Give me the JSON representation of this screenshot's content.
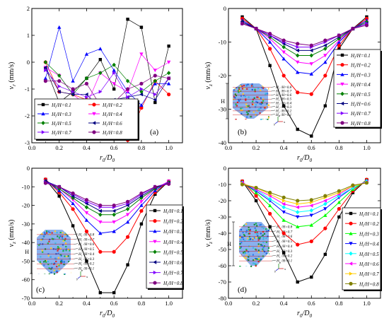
{
  "figure": {
    "panels": [
      {
        "id": "a",
        "label": "(a)"
      },
      {
        "id": "b",
        "label": "(b)"
      },
      {
        "id": "c",
        "label": "(c)"
      },
      {
        "id": "d",
        "label": "(d)"
      }
    ],
    "inset_height_label": "H"
  },
  "chart_data": [
    {
      "panel": "(a)",
      "type": "line",
      "ylabel": "v_r (mm/s)",
      "xlabel": "r_0/D_0",
      "xlim": [
        0.0,
        1.1
      ],
      "ylim": [
        -3,
        2
      ],
      "x_ticks": [
        0.0,
        0.2,
        0.4,
        0.6,
        0.8,
        1.0
      ],
      "y_ticks": [
        -3,
        -2,
        -1,
        0,
        1,
        2
      ],
      "legend_placement": "bottom-left",
      "x": [
        0.1,
        0.2,
        0.3,
        0.4,
        0.5,
        0.6,
        0.7,
        0.8,
        0.9,
        1.0
      ],
      "series": [
        {
          "name": "Hi/H=0.1",
          "color": "#000000",
          "marker": "square",
          "values": [
            -0.2,
            -1.5,
            -1.1,
            -0.6,
            0.1,
            -1.0,
            1.6,
            1.3,
            -1.5,
            0.6
          ]
        },
        {
          "name": "Hi/H=0.2",
          "color": "#ff0000",
          "marker": "circle",
          "values": [
            0.0,
            -1.1,
            -1.2,
            -1.4,
            -1.6,
            -1.6,
            -2.9,
            -1.7,
            -0.7,
            -1.2
          ]
        },
        {
          "name": "Hi/H=0.3",
          "color": "#0000ff",
          "marker": "triangle-up",
          "values": [
            -0.6,
            1.3,
            -0.7,
            0.3,
            0.5,
            -0.3,
            -1.1,
            -1.6,
            -0.8,
            -0.8
          ]
        },
        {
          "name": "Hi/H=0.4",
          "color": "#ff00ff",
          "marker": "triangle-down",
          "values": [
            -0.2,
            -0.5,
            -1.2,
            -1.6,
            -0.4,
            -0.8,
            -1.1,
            0.3,
            -0.3,
            0.0
          ]
        },
        {
          "name": "Hi/H=0.5",
          "color": "#008000",
          "marker": "diamond",
          "values": [
            0.0,
            -0.5,
            -1.2,
            -0.6,
            -0.4,
            -0.1,
            -0.7,
            -1.1,
            -0.7,
            -0.4
          ]
        },
        {
          "name": "Hi/H=0.6",
          "color": "#000080",
          "marker": "triangle-left",
          "values": [
            -0.2,
            -1.1,
            -1.2,
            -1.2,
            -1.7,
            -1.4,
            -1.3,
            -1.2,
            -1.4,
            -0.6
          ]
        },
        {
          "name": "Hi/H=0.7",
          "color": "#8000ff",
          "marker": "triangle-right",
          "values": [
            -0.3,
            -0.9,
            -1.1,
            -1.3,
            -1.1,
            -0.4,
            -1.3,
            -1.0,
            -1.2,
            -0.6
          ]
        },
        {
          "name": "Hi/H=0.8",
          "color": "#800080",
          "marker": "circle",
          "values": [
            -0.7,
            -0.7,
            -1.0,
            -0.8,
            -1.6,
            -1.5,
            -1.0,
            -0.8,
            -0.5,
            -0.6
          ]
        }
      ]
    },
    {
      "panel": "(b)",
      "type": "line",
      "ylabel": "v_z (mm/s)",
      "xlabel": "r_0/D_0",
      "xlim": [
        0.0,
        1.1
      ],
      "ylim": [
        -40,
        0
      ],
      "x_ticks": [
        0.0,
        0.2,
        0.4,
        0.6,
        0.8,
        1.0
      ],
      "y_ticks": [
        -40,
        -30,
        -20,
        -10,
        0
      ],
      "legend_placement": "bottom-right",
      "x": [
        0.1,
        0.2,
        0.3,
        0.4,
        0.5,
        0.6,
        0.7,
        0.8,
        0.9,
        1.0
      ],
      "series": [
        {
          "name": "Hi/H=0.1",
          "color": "#000000",
          "marker": "square",
          "values": [
            -2.5,
            -6,
            -17,
            -29,
            -36,
            -38,
            -29,
            -12,
            -6,
            -2.5
          ]
        },
        {
          "name": "Hi/H=0.2",
          "color": "#ff0000",
          "marker": "circle",
          "values": [
            -3,
            -6,
            -12,
            -20,
            -25,
            -25.5,
            -20,
            -11,
            -6,
            -3
          ]
        },
        {
          "name": "Hi/H=0.3",
          "color": "#0000ff",
          "marker": "triangle-up",
          "values": [
            -3.5,
            -6,
            -10,
            -15,
            -19,
            -19.5,
            -16,
            -10,
            -6,
            -3.5
          ]
        },
        {
          "name": "Hi/H=0.4",
          "color": "#ff00ff",
          "marker": "triangle-down",
          "values": [
            -4,
            -6,
            -9,
            -13,
            -16,
            -16.5,
            -14,
            -9.5,
            -6,
            -4
          ]
        },
        {
          "name": "Hi/H=0.5",
          "color": "#008000",
          "marker": "diamond",
          "values": [
            -4,
            -6,
            -8.5,
            -11.5,
            -14,
            -14,
            -12,
            -9,
            -6,
            -4
          ]
        },
        {
          "name": "Hi/H=0.6",
          "color": "#000080",
          "marker": "triangle-left",
          "values": [
            -4,
            -6,
            -8,
            -10.5,
            -12.5,
            -12.5,
            -11,
            -8.5,
            -6,
            -4.5
          ]
        },
        {
          "name": "Hi/H=0.7",
          "color": "#8000ff",
          "marker": "triangle-right",
          "values": [
            -4.5,
            -6,
            -8,
            -10,
            -11.5,
            -11.5,
            -10,
            -8,
            -6,
            -4.5
          ]
        },
        {
          "name": "Hi/H=0.8",
          "color": "#800080",
          "marker": "circle",
          "values": [
            -4.5,
            -6,
            -7.5,
            -9.5,
            -10.5,
            -11,
            -9.5,
            -8,
            -6,
            -5
          ]
        }
      ]
    },
    {
      "panel": "(c)",
      "type": "line",
      "ylabel": "v_z (mm/s)",
      "xlabel": "r_0/D_0",
      "xlim": [
        0.0,
        1.1
      ],
      "ylim": [
        -70,
        0
      ],
      "x_ticks": [
        0.0,
        0.2,
        0.4,
        0.6,
        0.8,
        1.0
      ],
      "y_ticks": [
        -70,
        -60,
        -50,
        -40,
        -30,
        -20,
        -10,
        0
      ],
      "legend_placement": "bottom-right",
      "x": [
        0.1,
        0.2,
        0.3,
        0.4,
        0.5,
        0.6,
        0.7,
        0.8,
        0.9,
        1.0
      ],
      "series": [
        {
          "name": "Hi/H=0.1",
          "color": "#000000",
          "marker": "square",
          "values": [
            -6,
            -15,
            -31,
            -50,
            -67,
            -67,
            -52,
            -30,
            -14,
            -7
          ]
        },
        {
          "name": "Hi/H=0.2",
          "color": "#ff0000",
          "marker": "circle",
          "values": [
            -6,
            -13,
            -22,
            -34,
            -45,
            -45,
            -37,
            -23,
            -13,
            -7
          ]
        },
        {
          "name": "Hi/H=0.3",
          "color": "#0000ff",
          "marker": "triangle-up",
          "values": [
            -6.5,
            -12,
            -19,
            -28,
            -35,
            -34,
            -29,
            -20,
            -12,
            -7
          ]
        },
        {
          "name": "Hi/H=0.4",
          "color": "#ff00ff",
          "marker": "triangle-down",
          "values": [
            -7,
            -11,
            -17,
            -24,
            -29,
            -29,
            -25,
            -18,
            -11,
            -7
          ]
        },
        {
          "name": "Hi/H=0.5",
          "color": "#008000",
          "marker": "diamond",
          "values": [
            -7,
            -11,
            -16,
            -21,
            -25,
            -25,
            -22,
            -16,
            -11,
            -7.5
          ]
        },
        {
          "name": "Hi/H=0.6",
          "color": "#000080",
          "marker": "triangle-left",
          "values": [
            -7,
            -10,
            -15,
            -19,
            -23,
            -23,
            -20,
            -15,
            -10.5,
            -8
          ]
        },
        {
          "name": "Hi/H=0.7",
          "color": "#8000ff",
          "marker": "triangle-right",
          "values": [
            -7.5,
            -10,
            -14,
            -18,
            -21,
            -21,
            -19,
            -14,
            -10,
            -8
          ]
        },
        {
          "name": "Hi/H=0.8",
          "color": "#800080",
          "marker": "circle",
          "values": [
            -8,
            -10,
            -13.5,
            -17,
            -20,
            -20,
            -18,
            -13.5,
            -10,
            -8.5
          ]
        }
      ]
    },
    {
      "panel": "(d)",
      "type": "line",
      "ylabel": "v_z (mm/s)",
      "xlabel": "r_0/D_0",
      "xlim": [
        0.0,
        1.1
      ],
      "ylim": [
        -80,
        0
      ],
      "x_ticks": [
        0.0,
        0.2,
        0.4,
        0.6,
        0.8,
        1.0
      ],
      "y_ticks": [
        -80,
        -70,
        -60,
        -50,
        -40,
        -30,
        -20,
        -10,
        0
      ],
      "legend_placement": "bottom-right",
      "x": [
        0.1,
        0.2,
        0.3,
        0.4,
        0.5,
        0.6,
        0.7,
        0.8,
        0.9,
        1.0
      ],
      "series": [
        {
          "name": "Hi/H=0.1",
          "color": "#000000",
          "marker": "square",
          "values": [
            -8,
            -20,
            -36,
            -52,
            -70,
            -67,
            -53,
            -30,
            -15,
            -7
          ]
        },
        {
          "name": "Hi/H=0.2",
          "color": "#ff0000",
          "marker": "circle",
          "values": [
            -8,
            -17,
            -28,
            -40,
            -47,
            -45,
            -37,
            -25,
            -14,
            -7
          ]
        },
        {
          "name": "Hi/H=0.3",
          "color": "#00ff00",
          "marker": "triangle-up",
          "values": [
            -8.5,
            -15,
            -23,
            -32,
            -36,
            -35,
            -29,
            -21,
            -13,
            -7.5
          ]
        },
        {
          "name": "Hi/H=0.4",
          "color": "#0000ff",
          "marker": "triangle-down",
          "values": [
            -9,
            -14,
            -20,
            -27,
            -30,
            -29,
            -25,
            -18,
            -12,
            -8
          ]
        },
        {
          "name": "Hi/H=0.5",
          "color": "#00ffff",
          "marker": "diamond",
          "values": [
            -9,
            -13,
            -19,
            -24,
            -27,
            -26,
            -22,
            -17,
            -12,
            -8
          ]
        },
        {
          "name": "Hi/H=0.6",
          "color": "#ff00ff",
          "marker": "triangle-left",
          "values": [
            -9,
            -13,
            -17,
            -22,
            -24,
            -23,
            -20,
            -16,
            -11,
            -8.5
          ]
        },
        {
          "name": "Hi/H=0.7",
          "color": "#ffcc00",
          "marker": "triangle-right",
          "values": [
            -9.5,
            -12,
            -16,
            -20,
            -22,
            -21,
            -18,
            -15,
            -11,
            -9
          ]
        },
        {
          "name": "Hi/H=0.8",
          "color": "#808000",
          "marker": "circle",
          "values": [
            -10,
            -12,
            -15,
            -18,
            -20,
            -19.5,
            -17,
            -14,
            -10.5,
            -9
          ]
        }
      ]
    }
  ]
}
